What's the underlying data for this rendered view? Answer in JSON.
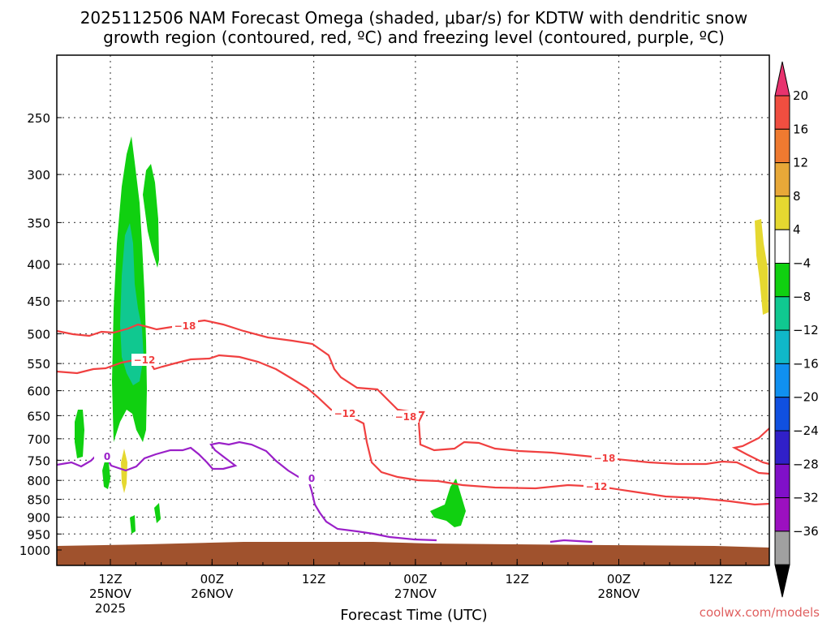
{
  "chart_data": {
    "type": "contour",
    "title_line1": "2025112506 NAM Forecast Omega (shaded, μbar/s) for KDTW with dendritic snow",
    "title_line2": "growth region (contoured, red, ºC) and freezing level (contoured, purple, ºC)",
    "xlabel": "Forecast Time (UTC)",
    "credit": "coolwx.com/models",
    "y_axis": {
      "scale": "log-pressure",
      "inverted": true,
      "ticks": [
        250,
        300,
        350,
        400,
        450,
        500,
        550,
        600,
        650,
        700,
        750,
        800,
        850,
        900,
        950,
        1000
      ]
    },
    "x_axis": {
      "ticks": [
        {
          "time": "12Z",
          "date": "25NOV",
          "year": "2025"
        },
        {
          "time": "00Z",
          "date": "26NOV",
          "year": ""
        },
        {
          "time": "12Z",
          "date": "",
          "year": ""
        },
        {
          "time": "00Z",
          "date": "27NOV",
          "year": ""
        },
        {
          "time": "12Z",
          "date": "",
          "year": ""
        },
        {
          "time": "00Z",
          "date": "28NOV",
          "year": ""
        },
        {
          "time": "12Z",
          "date": "",
          "year": ""
        }
      ]
    },
    "grid": true,
    "colorbar": {
      "labels": [
        "20",
        "16",
        "12",
        "8",
        "4",
        "−4",
        "−8",
        "−12",
        "−16",
        "−20",
        "−24",
        "−28",
        "−32",
        "−36"
      ],
      "colors": [
        "#e8336e",
        "#f04e40",
        "#ef7a30",
        "#e8a838",
        "#e5d830",
        "#ffffff",
        "#10d010",
        "#10c890",
        "#10b8c8",
        "#1090f0",
        "#1050e0",
        "#3020c8",
        "#8010c8",
        "#9c10c0",
        "#a0a0a0",
        "#000000"
      ]
    },
    "contour_labels": [
      {
        "text": "−18",
        "color": "#f04040"
      },
      {
        "text": "−12",
        "color": "#f04040"
      },
      {
        "text": "−12",
        "color": "#f04040"
      },
      {
        "text": "−18",
        "color": "#f04040"
      },
      {
        "text": "−18",
        "color": "#f04040"
      },
      {
        "text": "−12",
        "color": "#f04040"
      },
      {
        "text": "0",
        "color": "#9a20c8"
      },
      {
        "text": "0",
        "color": "#9a20c8"
      }
    ],
    "colors": {
      "dgz": "#f04040",
      "freezing": "#9a20c8",
      "terrain": "#a0522d",
      "omega_neg4": "#10d010",
      "omega_neg8": "#10c890",
      "omega_pos4": "#e5d830"
    }
  }
}
